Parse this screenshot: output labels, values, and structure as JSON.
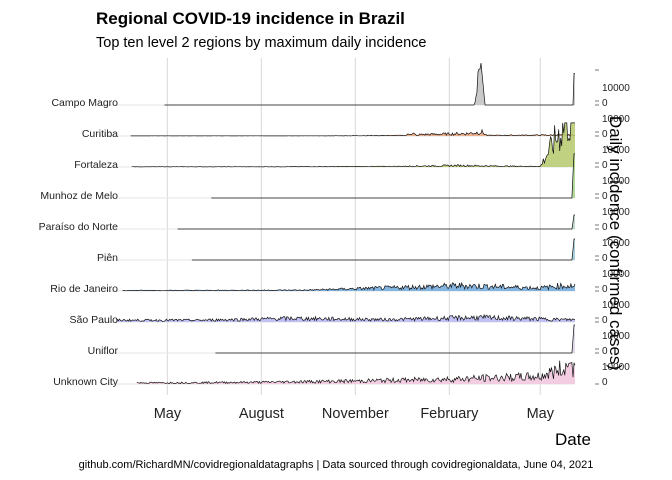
{
  "title": "Regional COVID-19 incidence in Brazil",
  "subtitle": "Top ten level 2 regions by maximum daily incidence",
  "caption": "github.com/RichardMN/covidregionaldatagraphs | Data sourced through covidregionaldata, June 04, 2021",
  "chart_data": {
    "type": "area",
    "title": "Regional COVID-19 incidence in Brazil",
    "subtitle": "Top ten level 2 regions by maximum daily incidence",
    "xlabel": "Date",
    "ylabel": "Daily incidence (confirmed cases)",
    "x_ticks": [
      "May",
      "August",
      "November",
      "February",
      "May"
    ],
    "y_ticks": [
      "10000",
      "0"
    ],
    "xlim": [
      "2020-02-25",
      "2021-06-04"
    ],
    "grid": true,
    "legend": "none",
    "series": [
      {
        "name": "Campo Magro",
        "color": "#c1c1c1",
        "start": "2020-04-28",
        "points": [
          [
            "2021-02-25",
            0
          ],
          [
            "2021-03-04",
            12000
          ],
          [
            "2021-03-08",
            0
          ],
          [
            "2021-06-02",
            0
          ],
          [
            "2021-06-03",
            9000
          ]
        ]
      },
      {
        "name": "Curitiba",
        "color": "#e8a27a",
        "start": "2020-03-26",
        "points": [
          [
            "2020-10-01",
            50
          ],
          [
            "2020-12-20",
            200
          ],
          [
            "2020-12-27",
            1100
          ],
          [
            "2020-12-31",
            100
          ],
          [
            "2021-01-03",
            500
          ],
          [
            "2021-02-17",
            800
          ],
          [
            "2021-03-05",
            1300
          ],
          [
            "2021-03-10",
            200
          ],
          [
            "2021-05-05",
            300
          ]
        ]
      },
      {
        "name": "Fortaleza",
        "color": "#b5c96b",
        "start": "2020-03-27",
        "points": [
          [
            "2020-08-01",
            80
          ],
          [
            "2020-12-10",
            200
          ],
          [
            "2021-02-10",
            500
          ],
          [
            "2021-03-20",
            300
          ],
          [
            "2021-05-01",
            200
          ],
          [
            "2021-06-03",
            20000
          ]
        ]
      },
      {
        "name": "Munhoz de Melo",
        "color": "#a7d38a",
        "start": "2020-06-13",
        "points": [
          [
            "2021-06-01",
            0
          ],
          [
            "2021-06-03",
            14000
          ]
        ]
      },
      {
        "name": "Paraíso do Norte",
        "color": "#b6d4c3",
        "start": "2020-05-11",
        "points": [
          [
            "2021-06-01",
            0
          ],
          [
            "2021-06-03",
            4000
          ]
        ]
      },
      {
        "name": "Piên",
        "color": "#9ac7d6",
        "start": "2020-05-25",
        "points": [
          [
            "2021-06-01",
            0
          ],
          [
            "2021-06-03",
            6000
          ]
        ]
      },
      {
        "name": "Rio de Janeiro",
        "color": "#6fa8dc",
        "start": "2020-03-18",
        "points": [
          [
            "2020-06-01",
            200
          ],
          [
            "2020-09-15",
            300
          ],
          [
            "2021-02-15",
            1800
          ],
          [
            "2021-05-01",
            1000
          ],
          [
            "2021-05-20",
            1700
          ]
        ]
      },
      {
        "name": "São Paulo",
        "color": "#b6b6f2",
        "start": "2020-03-12",
        "points": [
          [
            "2020-06-01",
            600
          ],
          [
            "2020-09-01",
            1200
          ],
          [
            "2020-12-01",
            800
          ],
          [
            "2021-03-01",
            1500
          ],
          [
            "2021-05-25",
            800
          ]
        ]
      },
      {
        "name": "Uniflor",
        "color": "#dcd3e8",
        "start": "2020-06-17",
        "points": [
          [
            "2021-06-01",
            0
          ],
          [
            "2021-06-03",
            8000
          ]
        ]
      },
      {
        "name": "Unknown City",
        "color": "#f1c6dd",
        "start": "2020-04-01",
        "points": [
          [
            "2020-05-01",
            400
          ],
          [
            "2020-08-01",
            600
          ],
          [
            "2020-11-01",
            1000
          ],
          [
            "2021-02-01",
            1600
          ],
          [
            "2021-05-01",
            2500
          ],
          [
            "2021-05-30",
            6000
          ]
        ]
      }
    ]
  }
}
